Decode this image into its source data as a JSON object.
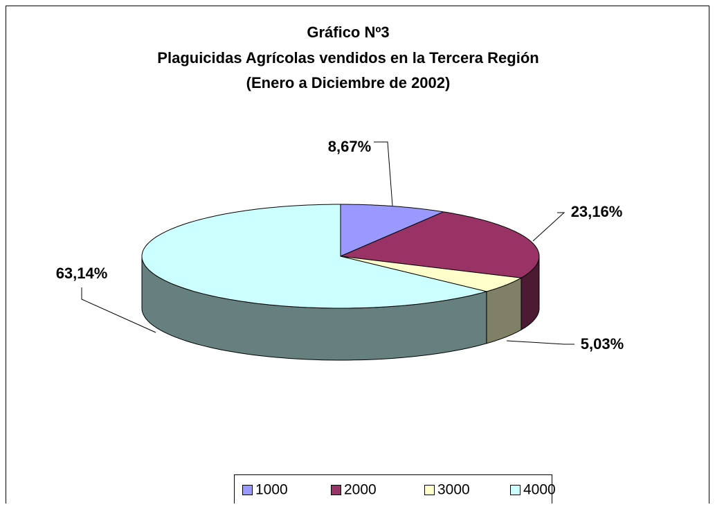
{
  "chart_data": {
    "type": "pie",
    "title": [
      "Gráfico Nº3",
      "Plaguicidas Agrícolas vendidos en la Tercera Región",
      "(Enero a Diciembre de 2002)"
    ],
    "categories": [
      "1000",
      "2000",
      "3000",
      "4000"
    ],
    "values": [
      8.67,
      23.16,
      5.03,
      63.14
    ],
    "value_labels": [
      "8,67%",
      "23,16%",
      "5,03%",
      "63,14%"
    ],
    "colors": [
      "#9999ff",
      "#993366",
      "#ffffcc",
      "#ccffff"
    ],
    "legend": "bottom"
  }
}
